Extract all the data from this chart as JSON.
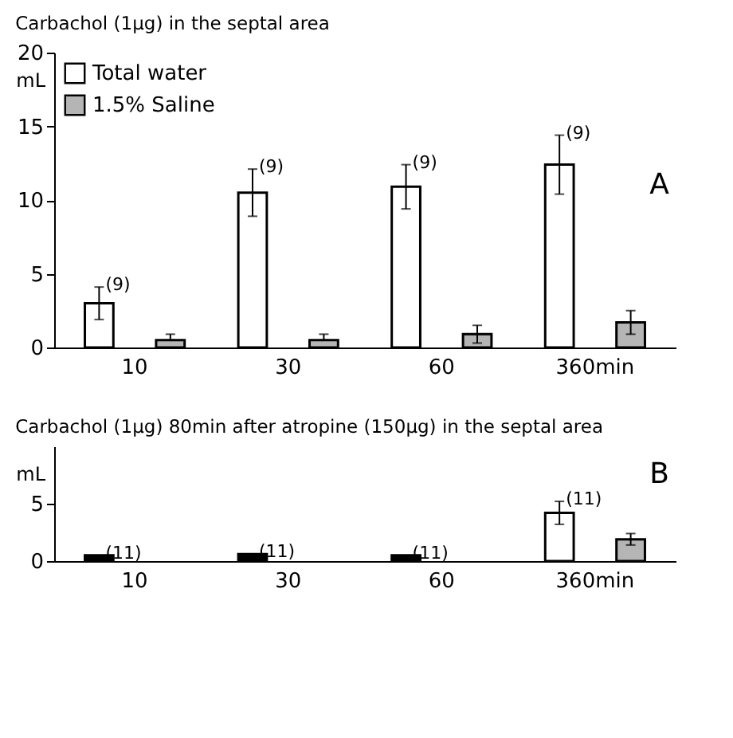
{
  "chart_data": [
    {
      "type": "bar",
      "title": "Carbachol (1μg) in the septal area",
      "ylabel": "mL",
      "categories": [
        "10",
        "30",
        "60",
        "360min"
      ],
      "ylim": [
        0,
        20
      ],
      "yticks": [
        0,
        5,
        10,
        15,
        20
      ],
      "legend": "top left",
      "series": [
        {
          "name": "Total water",
          "color": "#ffffff",
          "values": [
            3.0,
            10.5,
            10.9,
            12.4
          ],
          "errors": [
            1.1,
            1.6,
            1.5,
            2.0
          ]
        },
        {
          "name": "1.5% Saline",
          "color": "#b5b5b5",
          "values": [
            0.5,
            0.5,
            0.9,
            1.7
          ],
          "errors": [
            [
              0.5,
              0.9
            ],
            [
              0.5,
              0.9
            ],
            0.6,
            0.8
          ]
        }
      ],
      "annotations": [
        "(9)",
        "(9)",
        "(9)",
        "(9)",
        "A"
      ]
    },
    {
      "type": "bar",
      "title": "Carbachol (1μg) 80min after atropine (150μg) in the septal area",
      "ylabel": "mL",
      "categories": [
        "10",
        "30",
        "60",
        "360min"
      ],
      "ylim": [
        0,
        10
      ],
      "yticks": [
        0,
        5
      ],
      "series": [
        {
          "color": "#ffffff",
          "colors": [
            "#000000",
            "#000000",
            "#000000",
            null
          ],
          "values": [
            0.5,
            0.6,
            0.5,
            4.2
          ],
          "errors": [
            null,
            null,
            null,
            1.0
          ]
        },
        {
          "color": "#b5b5b5",
          "values": [
            null,
            null,
            null,
            1.9
          ],
          "errors": [
            null,
            null,
            null,
            0.5
          ]
        }
      ],
      "annotations": [
        "(11)",
        "(11)",
        "(11)",
        "(11)",
        "B"
      ]
    }
  ]
}
